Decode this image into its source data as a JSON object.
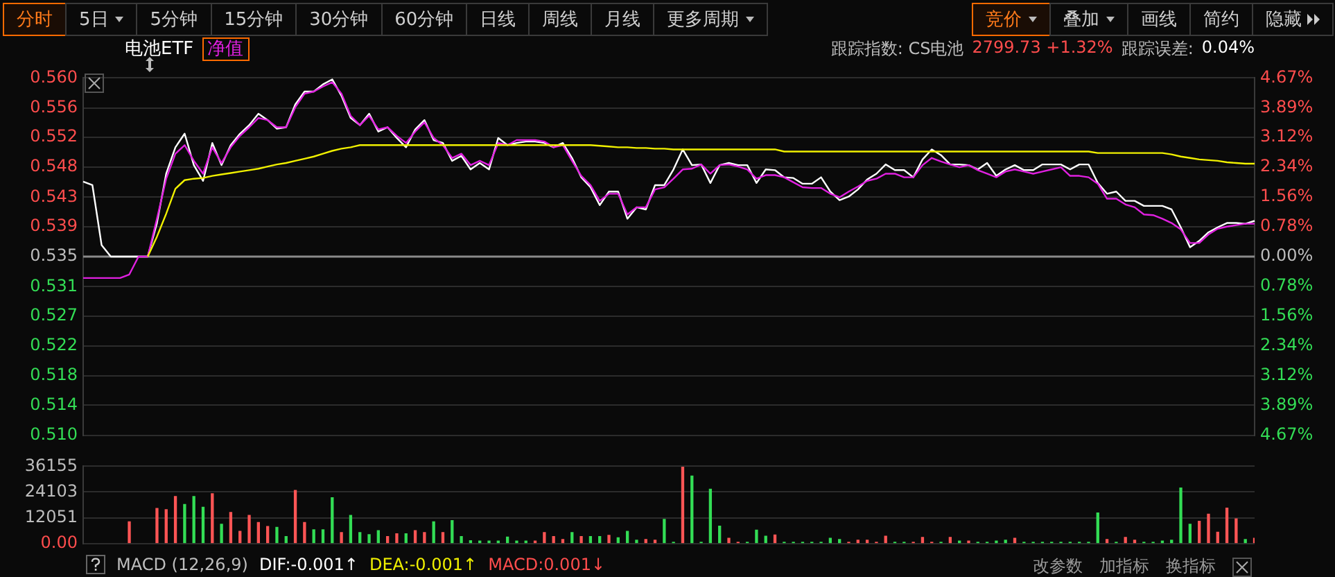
{
  "chart_data": [
    {
      "type": "other",
      "annotations": [
        "分时",
        "5日",
        "5分钟",
        "15分钟",
        "30分钟",
        "60分钟",
        "日线",
        "周线",
        "月线",
        "更多周期",
        "竞价",
        "叠加",
        "画线",
        "简约",
        "隐藏"
      ]
    },
    {
      "type": "line",
      "categories": [
        null,
        null,
        null,
        null,
        null,
        null,
        null,
        null,
        null,
        null,
        null,
        null,
        null,
        null,
        null,
        null,
        null,
        null,
        null,
        null,
        null,
        null,
        null,
        null,
        null,
        null,
        null,
        null,
        null,
        null,
        null,
        null,
        null,
        null,
        null,
        null,
        null,
        null,
        null,
        null,
        null,
        null,
        null,
        null,
        null,
        null,
        null,
        null,
        null,
        null,
        null,
        null,
        null,
        null,
        null,
        null,
        null,
        null,
        null,
        null,
        null,
        null,
        null,
        null,
        null,
        null,
        null,
        null,
        null,
        null,
        null,
        null,
        null,
        null,
        null,
        null,
        null,
        null,
        null,
        null,
        null,
        null,
        null,
        null,
        null,
        null,
        null,
        null,
        null,
        null,
        null,
        null,
        null,
        null,
        null,
        null,
        null,
        null,
        null,
        null,
        null,
        null,
        null,
        null,
        null,
        null,
        null,
        null,
        null,
        null,
        null,
        null,
        null,
        null,
        null,
        null,
        null,
        null,
        null,
        null,
        null,
        null,
        null,
        null,
        null,
        null,
        null,
        null
      ],
      "series": [
        {
          "name": "电池ETF",
          "color": "#ffffff",
          "values": [
            0.5455,
            0.545,
            0.5366,
            0.535,
            0.535,
            0.535,
            0.535,
            0.535,
            0.5397,
            0.5466,
            0.5503,
            0.5522,
            0.5478,
            0.5456,
            0.5509,
            0.5478,
            0.5506,
            0.5522,
            0.5534,
            0.555,
            0.5541,
            0.5529,
            0.5531,
            0.5563,
            0.5581,
            0.5581,
            0.5591,
            0.5598,
            0.5575,
            0.5544,
            0.5534,
            0.555,
            0.5525,
            0.5531,
            0.5516,
            0.5503,
            0.5528,
            0.5541,
            0.5513,
            0.5509,
            0.5484,
            0.5491,
            0.5472,
            0.5481,
            0.5472,
            0.5516,
            0.5506,
            0.5509,
            0.5511,
            0.5511,
            0.5509,
            0.5503,
            0.5509,
            0.5488,
            0.5461,
            0.5447,
            0.5422,
            0.5441,
            0.5441,
            0.5403,
            0.5419,
            0.5416,
            0.545,
            0.545,
            0.5472,
            0.55,
            0.5478,
            0.5479,
            0.5453,
            0.5478,
            0.5481,
            0.5478,
            0.5478,
            0.5453,
            0.5472,
            0.5471,
            0.5461,
            0.546,
            0.5452,
            0.5452,
            0.5461,
            0.5441,
            0.5429,
            0.5434,
            0.5444,
            0.5458,
            0.5466,
            0.5479,
            0.5471,
            0.5471,
            0.5461,
            0.5486,
            0.55,
            0.5492,
            0.5479,
            0.5479,
            0.5478,
            0.5472,
            0.5481,
            0.5463,
            0.5472,
            0.5478,
            0.5471,
            0.5471,
            0.5479,
            0.5479,
            0.5479,
            0.5472,
            0.5479,
            0.5479,
            0.5453,
            0.5438,
            0.5441,
            0.5428,
            0.5428,
            0.5421,
            0.5421,
            0.5421,
            0.5416,
            0.5391,
            0.5363,
            0.5372,
            0.5384,
            0.5391,
            0.5397,
            0.5397,
            0.5396,
            0.54
          ]
        },
        {
          "name": "净值",
          "color": "#e020e0",
          "values": [
            0.532,
            0.532,
            0.532,
            0.532,
            0.532,
            0.5325,
            0.535,
            0.535,
            0.5403,
            0.5459,
            0.5494,
            0.5506,
            0.5484,
            0.5466,
            0.5503,
            0.5481,
            0.5503,
            0.5519,
            0.5531,
            0.5544,
            0.5541,
            0.5531,
            0.5531,
            0.5559,
            0.5578,
            0.5581,
            0.5588,
            0.5594,
            0.5578,
            0.5547,
            0.5534,
            0.5547,
            0.5528,
            0.5531,
            0.5519,
            0.5509,
            0.5525,
            0.5538,
            0.5516,
            0.5506,
            0.5488,
            0.5494,
            0.5478,
            0.5484,
            0.5478,
            0.5509,
            0.5506,
            0.5513,
            0.5513,
            0.5513,
            0.5511,
            0.5503,
            0.5506,
            0.5484,
            0.5463,
            0.545,
            0.5428,
            0.5438,
            0.5438,
            0.5409,
            0.5419,
            0.5419,
            0.5444,
            0.5447,
            0.5459,
            0.5472,
            0.5473,
            0.5479,
            0.5466,
            0.5478,
            0.5479,
            0.5476,
            0.5472,
            0.5459,
            0.5464,
            0.5464,
            0.5461,
            0.5454,
            0.5447,
            0.5446,
            0.5446,
            0.5438,
            0.5433,
            0.5441,
            0.5448,
            0.5456,
            0.5459,
            0.5466,
            0.5466,
            0.5461,
            0.5461,
            0.5478,
            0.5488,
            0.5483,
            0.5479,
            0.5475,
            0.5478,
            0.5471,
            0.5466,
            0.5461,
            0.5469,
            0.5472,
            0.5469,
            0.5466,
            0.5469,
            0.5472,
            0.5475,
            0.5463,
            0.5463,
            0.5461,
            0.5452,
            0.5431,
            0.5431,
            0.5423,
            0.5419,
            0.5409,
            0.5408,
            0.5403,
            0.5397,
            0.5388,
            0.5369,
            0.5369,
            0.5381,
            0.5389,
            0.5392,
            0.5394,
            0.5396,
            0.5396
          ]
        },
        {
          "color": "#f0f000",
          "values": [
            null,
            null,
            null,
            null,
            null,
            null,
            null,
            0.535,
            0.5378,
            0.541,
            0.5445,
            0.5457,
            0.5459,
            0.546,
            0.5463,
            0.5465,
            0.5467,
            0.5469,
            0.5471,
            0.5473,
            0.5476,
            0.5479,
            0.5481,
            0.5484,
            0.5487,
            0.549,
            0.5494,
            0.5498,
            0.5501,
            0.5503,
            0.5506,
            0.5506,
            0.5506,
            0.5506,
            0.5506,
            0.5506,
            0.5506,
            0.5506,
            0.5506,
            0.5506,
            0.5506,
            0.5506,
            0.5506,
            0.5506,
            0.5506,
            0.5506,
            0.5506,
            0.5506,
            0.5506,
            0.5506,
            0.5506,
            0.5506,
            0.5506,
            0.5506,
            0.5506,
            0.5506,
            0.5505,
            0.5504,
            0.5503,
            0.5503,
            0.5502,
            0.5502,
            0.5501,
            0.5501,
            0.55,
            0.55,
            0.55,
            0.55,
            0.55,
            0.55,
            0.55,
            0.55,
            0.55,
            0.55,
            0.55,
            0.55,
            0.5497,
            0.5497,
            0.5497,
            0.5497,
            0.5497,
            0.5497,
            0.5497,
            0.5497,
            0.5497,
            0.5497,
            0.5497,
            0.5497,
            0.5497,
            0.5497,
            0.5497,
            0.5497,
            0.5497,
            0.5497,
            0.5497,
            0.5497,
            0.5497,
            0.5497,
            0.5497,
            0.5497,
            0.5497,
            0.5497,
            0.5497,
            0.5497,
            0.5497,
            0.5497,
            0.5497,
            0.5497,
            0.5497,
            0.5497,
            0.5495,
            0.5495,
            0.5495,
            0.5495,
            0.5495,
            0.5495,
            0.5495,
            0.5495,
            0.5493,
            0.549,
            0.5488,
            0.5486,
            0.5485,
            0.5484,
            0.5482,
            0.5481,
            0.548,
            0.548
          ]
        }
      ],
      "ylim": [
        0.51,
        0.56
      ],
      "yticks": [
        {
          "value": 0.51,
          "label": "0.510"
        },
        {
          "value": 0.5142,
          "label": "0.514"
        },
        {
          "value": 0.5183,
          "label": "0.518"
        },
        {
          "value": 0.5225,
          "label": "0.522"
        },
        {
          "value": 0.5267,
          "label": "0.527"
        },
        {
          "value": 0.5308,
          "label": "0.531"
        },
        {
          "value": 0.535,
          "label": "0.535"
        },
        {
          "value": 0.5392,
          "label": "0.539"
        },
        {
          "value": 0.5433,
          "label": "0.543"
        },
        {
          "value": 0.5475,
          "label": "0.548"
        },
        {
          "value": 0.5517,
          "label": "0.552"
        },
        {
          "value": 0.5558,
          "label": "0.556"
        },
        {
          "value": 0.56,
          "label": "0.560"
        }
      ],
      "y2lim": [
        -4.67,
        4.67
      ],
      "y2ticks": [
        {
          "value": -4.67,
          "label": "4.67%"
        },
        {
          "value": -3.89,
          "label": "3.89%"
        },
        {
          "value": -3.12,
          "label": "3.12%"
        },
        {
          "value": -2.34,
          "label": "2.34%"
        },
        {
          "value": -1.56,
          "label": "1.56%"
        },
        {
          "value": -0.78,
          "label": "0.78%"
        },
        {
          "value": 0,
          "label": "0.00%"
        },
        {
          "value": 0.78,
          "label": "0.78%"
        },
        {
          "value": 1.56,
          "label": "1.56%"
        },
        {
          "value": 2.34,
          "label": "2.34%"
        },
        {
          "value": 3.12,
          "label": "3.12%"
        },
        {
          "value": 3.89,
          "label": "3.89%"
        },
        {
          "value": 4.67,
          "label": "4.67%"
        }
      ],
      "ref_lines": [
        {
          "axis": "y",
          "value": 0.535,
          "color": "#8a8a8a"
        }
      ],
      "grid": "y",
      "legend": "top left",
      "annotations": [
        "跟踪指数: CS电池",
        "2799.73 +1.32%",
        "跟踪误差:",
        "0.04%"
      ]
    },
    {
      "type": "bar",
      "categories": [
        null,
        null,
        null,
        null,
        null,
        null,
        null,
        null,
        null,
        null,
        null,
        null,
        null,
        null,
        null,
        null,
        null,
        null,
        null,
        null,
        null,
        null,
        null,
        null,
        null,
        null,
        null,
        null,
        null,
        null,
        null,
        null,
        null,
        null,
        null,
        null,
        null,
        null,
        null,
        null,
        null,
        null,
        null,
        null,
        null,
        null,
        null,
        null,
        null,
        null,
        null,
        null,
        null,
        null,
        null,
        null,
        null,
        null,
        null,
        null,
        null,
        null,
        null,
        null,
        null,
        null,
        null,
        null,
        null,
        null,
        null,
        null,
        null,
        null,
        null,
        null,
        null,
        null,
        null,
        null,
        null,
        null,
        null,
        null,
        null,
        null,
        null,
        null,
        null,
        null,
        null,
        null,
        null,
        null,
        null,
        null,
        null,
        null,
        null,
        null,
        null,
        null,
        null,
        null,
        null,
        null,
        null,
        null,
        null,
        null,
        null,
        null,
        null,
        null,
        null,
        null,
        null,
        null,
        null,
        null,
        null,
        null,
        null,
        null,
        null,
        null,
        null,
        null
      ],
      "values": [
        null,
        null,
        null,
        null,
        null,
        10168,
        null,
        null,
        16382,
        15817,
        22031,
        18265,
        22031,
        16947,
        23349,
        9038,
        14499,
        5649,
        13181,
        9792,
        7909,
        7532,
        3201,
        24856,
        9792,
        6402,
        6402,
        21466,
        5084,
        13181,
        5084,
        4143,
        6026,
        3201,
        4519,
        4519,
        6026,
        5084,
        10168,
        5084,
        10733,
        3201,
        1318,
        1130,
        1130,
        1130,
        3013,
        1130,
        1130,
        1130,
        5084,
        3201,
        1883,
        5084,
        3201,
        3201,
        3201,
        3766,
        2636,
        5649,
        1506,
        1883,
        1506,
        11298,
        565,
        35776,
        31634,
        565,
        25420,
        8097,
        2448,
        565,
        565,
        6214,
        3389,
        3954,
        565,
        565,
        565,
        565,
        565,
        2448,
        1883,
        565,
        1506,
        1506,
        565,
        3389,
        565,
        565,
        565,
        2825,
        565,
        565,
        2825,
        1130,
        1130,
        565,
        565,
        1130,
        1506,
        2448,
        565,
        565,
        565,
        565,
        565,
        565,
        565,
        565,
        14311,
        1883,
        565,
        2825,
        1506,
        565,
        565,
        1130,
        1506,
        25985,
        9038,
        10357,
        13746,
        5272,
        16570,
        11486,
        1883,
        2448
      ],
      "colors": [
        "#ff5555",
        "#ff5555",
        "#ff5555",
        "#ff5555",
        "#ff5555",
        "#ff5555",
        "#ff5555",
        "#ff5555",
        "#ff5555",
        "#ff5555",
        "#ff5555",
        "#33dd55",
        "#33dd55",
        "#33dd55",
        "#ff5555",
        "#33dd55",
        "#ff5555",
        "#ff5555",
        "#ff5555",
        "#ff5555",
        "#ff5555",
        "#33dd55",
        "#33dd55",
        "#ff5555",
        "#ff5555",
        "#33dd55",
        "#33dd55",
        "#33dd55",
        "#ff5555",
        "#33dd55",
        "#33dd55",
        "#33dd55",
        "#33dd55",
        "#ff5555",
        "#ff5555",
        "#33dd55",
        "#ff5555",
        "#ff5555",
        "#33dd55",
        "#ff5555",
        "#33dd55",
        "#33dd55",
        "#33dd55",
        "#33dd55",
        "#33dd55",
        "#33dd55",
        "#33dd55",
        "#33dd55",
        "#33dd55",
        "#ff5555",
        "#ff5555",
        "#ff5555",
        "#ff5555",
        "#33dd55",
        "#ff5555",
        "#33dd55",
        "#33dd55",
        "#ff5555",
        "#33dd55",
        "#33dd55",
        "#33dd55",
        "#ff5555",
        "#ff5555",
        "#33dd55",
        "#33dd55",
        "#ff5555",
        "#33dd55",
        "#33dd55",
        "#33dd55",
        "#33dd55",
        "#ff5555",
        "#ff5555",
        "#33dd55",
        "#33dd55",
        "#33dd55",
        "#ff5555",
        "#33dd55",
        "#33dd55",
        "#33dd55",
        "#33dd55",
        "#33dd55",
        "#33dd55",
        "#33dd55",
        "#ff5555",
        "#ff5555",
        "#ff5555",
        "#ff5555",
        "#ff5555",
        "#33dd55",
        "#33dd55",
        "#ff5555",
        "#ff5555",
        "#ff5555",
        "#33dd55",
        "#ff5555",
        "#33dd55",
        "#ff5555",
        "#33dd55",
        "#33dd55",
        "#33dd55",
        "#33dd55",
        "#ff5555",
        "#33dd55",
        "#33dd55",
        "#33dd55",
        "#33dd55",
        "#33dd55",
        "#33dd55",
        "#33dd55",
        "#33dd55",
        "#33dd55",
        "#ff5555",
        "#33dd55",
        "#ff5555",
        "#ff5555",
        "#33dd55",
        "#33dd55",
        "#33dd55",
        "#33dd55",
        "#33dd55",
        "#33dd55",
        "#ff5555",
        "#ff5555",
        "#ff5555",
        "#ff5555",
        "#ff5555",
        "#33dd55",
        "#ff5555"
      ],
      "ylim": [
        0,
        36155
      ],
      "yticks": [
        {
          "value": 0,
          "label": "0.00"
        },
        12051,
        24103,
        36155
      ],
      "grid": "y",
      "annotations": [
        "MACD (12,26,9)",
        "DIF:-0.001↑",
        "DEA:-0.001↑",
        "MACD:0.001↓",
        "改参数",
        "加指标",
        "换指标"
      ]
    }
  ]
}
